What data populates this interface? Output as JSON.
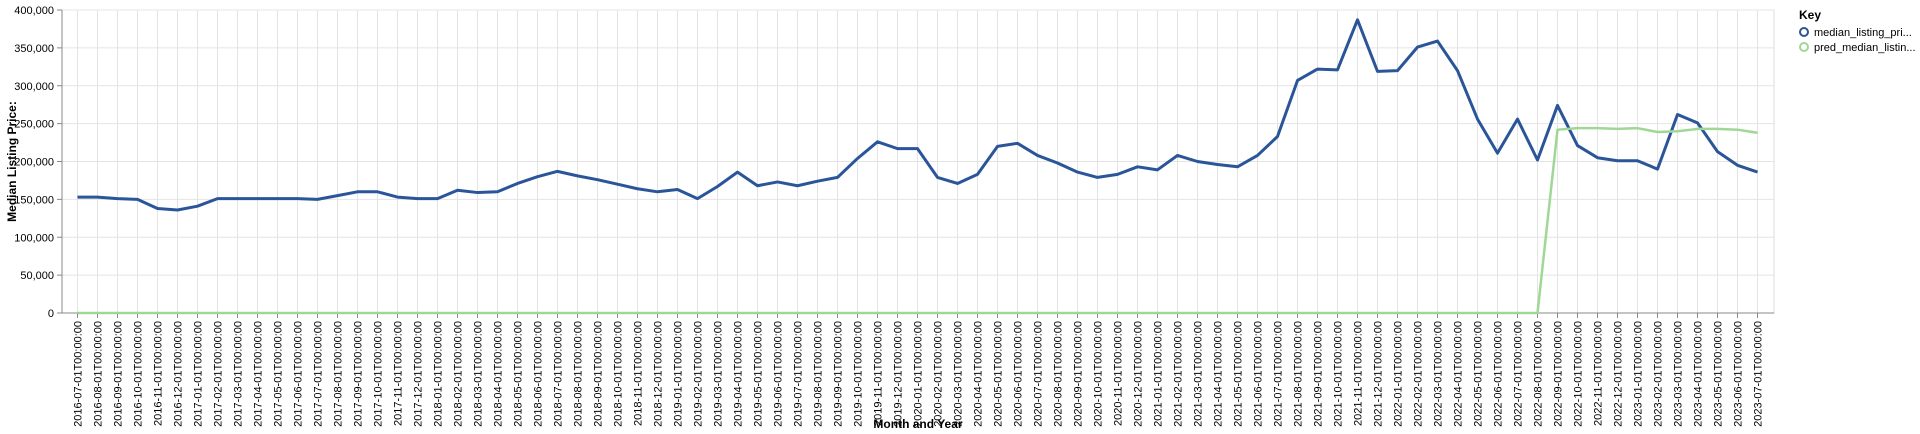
{
  "chart_data": {
    "type": "line",
    "xlabel": "Month and Year",
    "ylabel": "Median Listing Price:",
    "ylim": [
      0,
      400000
    ],
    "y_ticks": [
      0,
      50000,
      100000,
      150000,
      200000,
      250000,
      300000,
      350000,
      400000
    ],
    "y_tick_labels": [
      "0",
      "50,000",
      "100,000",
      "150,000",
      "200,000",
      "250,000",
      "300,000",
      "350,000",
      "400,000"
    ],
    "grid": true,
    "legend": {
      "title": "Key",
      "position": "top-right"
    },
    "x": [
      "2016-07-01T00:00:00",
      "2016-08-01T00:00:00",
      "2016-09-01T00:00:00",
      "2016-10-01T00:00:00",
      "2016-11-01T00:00:00",
      "2016-12-01T00:00:00",
      "2017-01-01T00:00:00",
      "2017-02-01T00:00:00",
      "2017-03-01T00:00:00",
      "2017-04-01T00:00:00",
      "2017-05-01T00:00:00",
      "2017-06-01T00:00:00",
      "2017-07-01T00:00:00",
      "2017-08-01T00:00:00",
      "2017-09-01T00:00:00",
      "2017-10-01T00:00:00",
      "2017-11-01T00:00:00",
      "2017-12-01T00:00:00",
      "2018-01-01T00:00:00",
      "2018-02-01T00:00:00",
      "2018-03-01T00:00:00",
      "2018-04-01T00:00:00",
      "2018-05-01T00:00:00",
      "2018-06-01T00:00:00",
      "2018-07-01T00:00:00",
      "2018-08-01T00:00:00",
      "2018-09-01T00:00:00",
      "2018-10-01T00:00:00",
      "2018-11-01T00:00:00",
      "2018-12-01T00:00:00",
      "2019-01-01T00:00:00",
      "2019-02-01T00:00:00",
      "2019-03-01T00:00:00",
      "2019-04-01T00:00:00",
      "2019-05-01T00:00:00",
      "2019-06-01T00:00:00",
      "2019-07-01T00:00:00",
      "2019-08-01T00:00:00",
      "2019-09-01T00:00:00",
      "2019-10-01T00:00:00",
      "2019-11-01T00:00:00",
      "2019-12-01T00:00:00",
      "2020-01-01T00:00:00",
      "2020-02-01T00:00:00",
      "2020-03-01T00:00:00",
      "2020-04-01T00:00:00",
      "2020-05-01T00:00:00",
      "2020-06-01T00:00:00",
      "2020-07-01T00:00:00",
      "2020-08-01T00:00:00",
      "2020-09-01T00:00:00",
      "2020-10-01T00:00:00",
      "2020-11-01T00:00:00",
      "2020-12-01T00:00:00",
      "2021-01-01T00:00:00",
      "2021-02-01T00:00:00",
      "2021-03-01T00:00:00",
      "2021-04-01T00:00:00",
      "2021-05-01T00:00:00",
      "2021-06-01T00:00:00",
      "2021-07-01T00:00:00",
      "2021-08-01T00:00:00",
      "2021-09-01T00:00:00",
      "2021-10-01T00:00:00",
      "2021-11-01T00:00:00",
      "2021-12-01T00:00:00",
      "2022-01-01T00:00:00",
      "2022-02-01T00:00:00",
      "2022-03-01T00:00:00",
      "2022-04-01T00:00:00",
      "2022-05-01T00:00:00",
      "2022-06-01T00:00:00",
      "2022-07-01T00:00:00",
      "2022-08-01T00:00:00",
      "2022-09-01T00:00:00",
      "2022-10-01T00:00:00",
      "2022-11-01T00:00:00",
      "2022-12-01T00:00:00",
      "2023-01-01T00:00:00",
      "2023-02-01T00:00:00",
      "2023-03-01T00:00:00",
      "2023-04-01T00:00:00",
      "2023-05-01T00:00:00",
      "2023-06-01T00:00:00",
      "2023-07-01T00:00:00"
    ],
    "series": [
      {
        "name": "median_listing_pri...",
        "color": "#2a5599",
        "values": [
          153000,
          153000,
          151000,
          150000,
          138000,
          136000,
          141000,
          151000,
          151000,
          151000,
          151000,
          151000,
          150000,
          155000,
          160000,
          160000,
          153000,
          151000,
          151000,
          162000,
          159000,
          160000,
          171000,
          180000,
          187000,
          181000,
          176000,
          170000,
          164000,
          160000,
          163000,
          151000,
          167000,
          186000,
          168000,
          173000,
          168000,
          174000,
          179000,
          204000,
          226000,
          217000,
          217000,
          179000,
          171000,
          183000,
          220000,
          224000,
          208000,
          198000,
          186000,
          179000,
          183000,
          193000,
          189000,
          208000,
          200000,
          196000,
          193000,
          208000,
          233000,
          307000,
          322000,
          321000,
          387000,
          319000,
          320000,
          351000,
          359000,
          320000,
          256000,
          211000,
          256000,
          202000,
          274000,
          221000,
          205000,
          201000,
          201000,
          190000,
          262000,
          251000,
          213000,
          195000,
          186000
        ]
      },
      {
        "name": "pred_median_listin...",
        "color": "#a0d796",
        "values": [
          0,
          0,
          0,
          0,
          0,
          0,
          0,
          0,
          0,
          0,
          0,
          0,
          0,
          0,
          0,
          0,
          0,
          0,
          0,
          0,
          0,
          0,
          0,
          0,
          0,
          0,
          0,
          0,
          0,
          0,
          0,
          0,
          0,
          0,
          0,
          0,
          0,
          0,
          0,
          0,
          0,
          0,
          0,
          0,
          0,
          0,
          0,
          0,
          0,
          0,
          0,
          0,
          0,
          0,
          0,
          0,
          0,
          0,
          0,
          0,
          0,
          0,
          0,
          0,
          0,
          0,
          0,
          0,
          0,
          0,
          0,
          0,
          0,
          0,
          242000,
          244000,
          244000,
          243000,
          244000,
          239000,
          240000,
          243000,
          243000,
          242000,
          238000
        ]
      }
    ]
  }
}
